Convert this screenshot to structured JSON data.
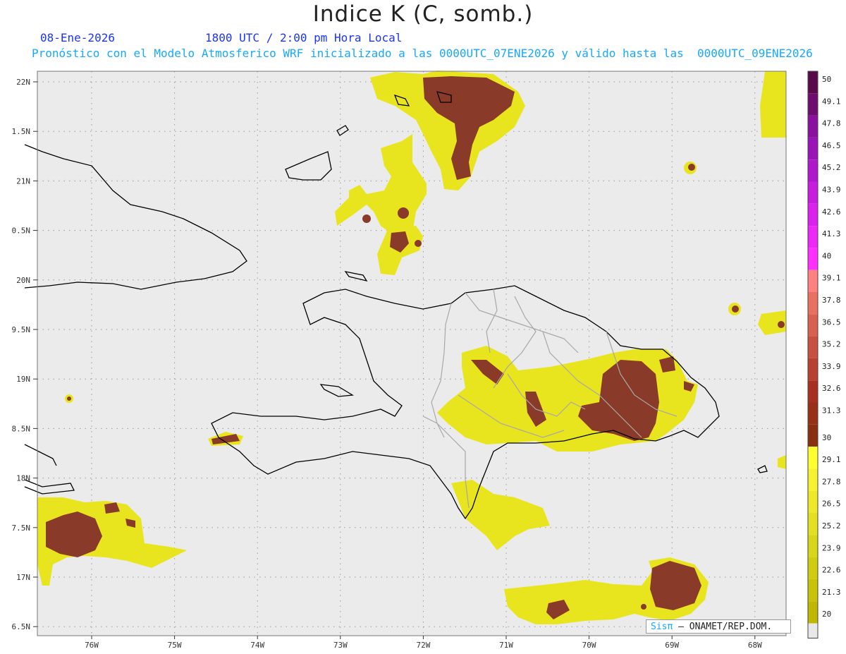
{
  "title": "Indice K (C, somb.)",
  "date_line": "08-Ene-2026",
  "time_line": "1800 UTC / 2:00 pm Hora Local",
  "model_line": "Pronóstico con el Modelo Atmosferico WRF inicializado a las 0000UTC_07ENE2026 y válido hasta las  0000UTC_09ENE2026",
  "credit": {
    "brand": "Sisπ",
    "org": "– ONAMET/REP.DOM."
  },
  "axes": {
    "lat_labels": [
      "22N",
      "1.5N",
      "21N",
      "0.5N",
      "20N",
      "9.5N",
      "19N",
      "8.5N",
      "18N",
      "7.5N",
      "17N",
      "6.5N"
    ],
    "lon_labels": [
      "76W",
      "75W",
      "74W",
      "73W",
      "72W",
      "71W",
      "70W",
      "69W",
      "68W"
    ]
  },
  "legend": {
    "labels": [
      "50",
      "49.1",
      "47.8",
      "46.5",
      "45.2",
      "43.9",
      "42.6",
      "41.3",
      "40",
      "39.1",
      "37.8",
      "36.5",
      "35.2",
      "33.9",
      "32.6",
      "31.3",
      "30",
      "29.1",
      "27.8",
      "26.5",
      "25.2",
      "23.9",
      "22.6",
      "21.3",
      "20"
    ],
    "colors": [
      "#5a0a4a",
      "#6e0c70",
      "#8a10a0",
      "#9a14b8",
      "#b018cc",
      "#c81ce0",
      "#dc20ee",
      "#ee28f8",
      "#ff30ff",
      "#ff8080",
      "#e87060",
      "#d86050",
      "#c85040",
      "#b84030",
      "#a83020",
      "#983018",
      "#883010",
      "#ffff30",
      "#f5f230",
      "#ecea28",
      "#e2e020",
      "#d8d618",
      "#d0cc10",
      "#c8c208",
      "#c0b800"
    ],
    "bottom_color": "#e8e8e8"
  },
  "colors": {
    "land_background": "#ebebeb",
    "coast": "#000000",
    "provinces": "#a8a8a8",
    "k_low": "#e8e51f",
    "k_mid": "#f2f040",
    "k_high": "#8a3a28",
    "k_peak": "#a05040"
  }
}
